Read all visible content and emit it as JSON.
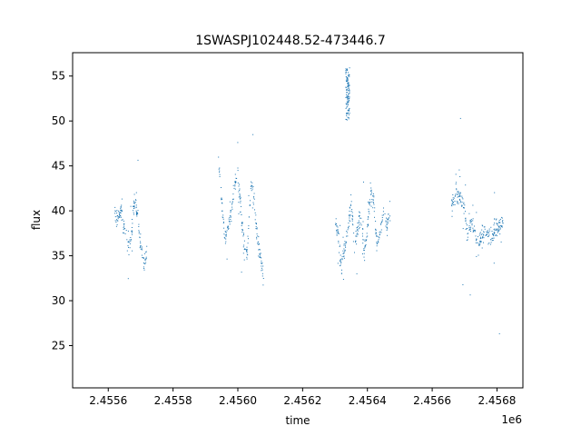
{
  "chart_data": {
    "type": "scatter",
    "title": "1SWASPJ102448.52-473446.7",
    "xlabel": "time",
    "ylabel": "flux",
    "x_offset_label": "1e6",
    "xlim": [
      2.45549,
      2.45688
    ],
    "ylim": [
      20.3,
      57.6
    ],
    "x_ticks": [
      2.4556,
      2.4558,
      2.456,
      2.4562,
      2.4564,
      2.4566,
      2.4568
    ],
    "x_tick_labels": [
      "2.4556",
      "2.4558",
      "2.4560",
      "2.4562",
      "2.4564",
      "2.4566",
      "2.4568"
    ],
    "y_ticks": [
      25,
      30,
      35,
      40,
      45,
      50,
      55
    ],
    "y_tick_labels": [
      "25",
      "30",
      "35",
      "40",
      "45",
      "50",
      "55"
    ],
    "grid": false,
    "marker_color": "#1f77b4",
    "series": [
      {
        "segments": [
          {
            "x": [
              2.45562,
              2.45563,
              2.45564,
              2.45565,
              2.45566,
              2.45567,
              2.45568,
              2.45569,
              2.4557,
              2.45571,
              2.45572
            ],
            "y": [
              40.0,
              39.0,
              40.0,
              38.0,
              36.0,
              37.0,
              41.0,
              40.0,
              36.0,
              34.0,
              35.0
            ]
          },
          {
            "x": [
              2.45594,
              2.45595,
              2.45596,
              2.45597,
              2.45598,
              2.45599,
              2.456,
              2.45601,
              2.45602,
              2.45603,
              2.45604,
              2.45605,
              2.45606,
              2.45607,
              2.45608
            ],
            "y": [
              46.0,
              41.0,
              37.0,
              38.0,
              40.0,
              43.0,
              44.0,
              40.0,
              36.0,
              35.0,
              43.0,
              41.0,
              37.0,
              35.0,
              32.0
            ]
          },
          {
            "x": [
              2.4563,
              2.45631,
              2.45632,
              2.45633,
              2.45634,
              2.45635,
              2.45636,
              2.45637,
              2.45638,
              2.45639,
              2.4564,
              2.45641,
              2.45642,
              2.45643,
              2.45644,
              2.45645,
              2.45646,
              2.45647
            ],
            "y": [
              39.0,
              37.0,
              34.0,
              36.0,
              38.0,
              41.0,
              36.0,
              38.0,
              40.0,
              35.0,
              38.0,
              42.0,
              41.0,
              36.0,
              38.0,
              40.0,
              38.0,
              40.0
            ]
          },
          {
            "x": [
              2.45666,
              2.45668,
              2.4567,
              2.45671,
              2.45672,
              2.45673,
              2.45674,
              2.45676,
              2.45678,
              2.4568,
              2.45682
            ],
            "y": [
              41.0,
              42.0,
              40.0,
              37.0,
              39.0,
              38.0,
              36.0,
              38.0,
              37.0,
              38.0,
              39.0
            ]
          }
        ],
        "bursts": [
          {
            "x": [
              2.456333,
              2.456345
            ],
            "y": [
              50.0,
              56.0
            ]
          }
        ]
      }
    ]
  }
}
